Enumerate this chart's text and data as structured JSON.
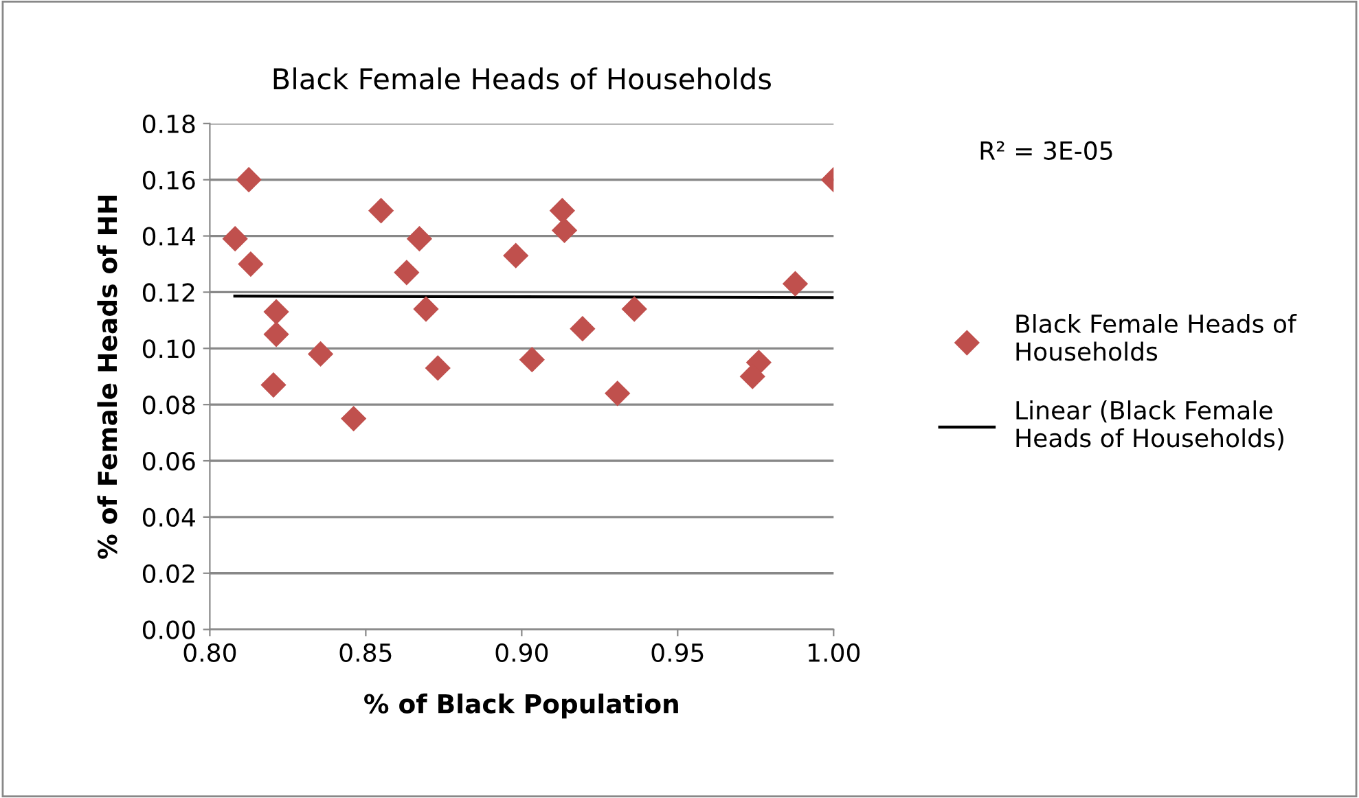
{
  "chart_data": {
    "type": "scatter",
    "title": "Black Female Heads of Households",
    "xlabel": "% of Black Population",
    "ylabel": "% of Female Heads of HH",
    "xlim": [
      0.8,
      1.0
    ],
    "xticks": [
      {
        "value": 0.8,
        "label": "0.80"
      },
      {
        "value": 0.85,
        "label": "0.85"
      },
      {
        "value": 0.9,
        "label": "0.90"
      },
      {
        "value": 0.95,
        "label": "0.95"
      },
      {
        "value": 1.0,
        "label": "1.00"
      }
    ],
    "ylim": [
      0,
      0.18
    ],
    "yticks": [
      {
        "value": 0,
        "label": "0.00"
      },
      {
        "value": 0.02,
        "label": "0.02"
      },
      {
        "value": 0.04,
        "label": "0.04"
      },
      {
        "value": 0.06,
        "label": "0.06"
      },
      {
        "value": 0.08,
        "label": "0.08"
      },
      {
        "value": 0.1,
        "label": "0.10"
      },
      {
        "value": 0.12,
        "label": "0.12"
      },
      {
        "value": 0.14,
        "label": "0.14"
      },
      {
        "value": 0.16,
        "label": "0.16"
      },
      {
        "value": 0.18,
        "label": "0.18"
      }
    ],
    "grid": "y",
    "legend": "right",
    "marker": "diamond",
    "annotations": [
      "R² = 3E-05"
    ],
    "series": [
      {
        "name": "Black Female Heads of Households",
        "color": "#c0504d",
        "x": [
          0.8125,
          0.8081,
          0.8131,
          0.8213,
          0.8213,
          0.8204,
          0.8355,
          0.8461,
          0.8549,
          0.8672,
          0.8631,
          0.8693,
          0.8731,
          0.8981,
          0.913,
          0.9137,
          0.9033,
          0.9195,
          0.9361,
          0.9307,
          0.976,
          0.974,
          0.9877,
          1.0
        ],
        "values": [
          0.16,
          0.139,
          0.13,
          0.113,
          0.105,
          0.087,
          0.098,
          0.075,
          0.149,
          0.139,
          0.127,
          0.114,
          0.093,
          0.133,
          0.149,
          0.142,
          0.096,
          0.107,
          0.114,
          0.084,
          0.095,
          0.09,
          0.123,
          0.16
        ]
      },
      {
        "name": "Linear (Black Female Heads of Households)",
        "type": "line",
        "color": "#000000",
        "line_style": "solid",
        "marker": "none",
        "x": [
          0.808,
          1.0
        ],
        "values": [
          0.1186,
          0.1181
        ]
      }
    ]
  }
}
